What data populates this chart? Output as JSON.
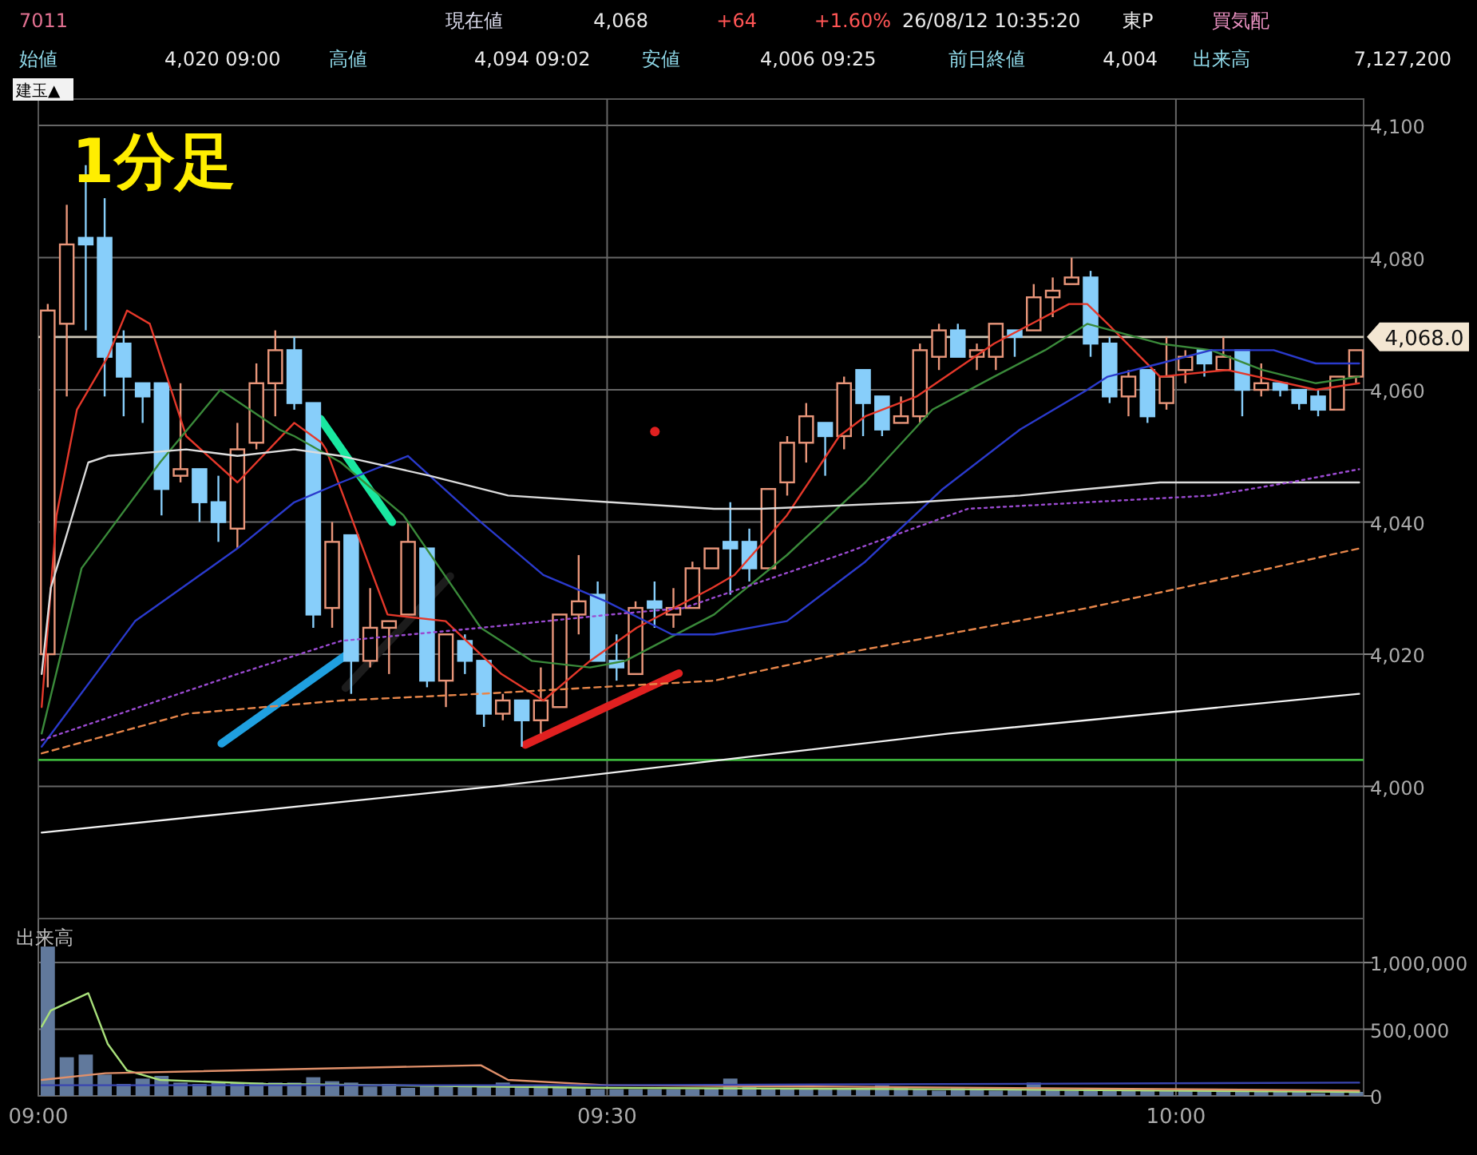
{
  "chart_data": [
    {
      "type": "candlestick",
      "title": "1分足",
      "tick_labels": "y",
      "grid": true,
      "annotations": [
        "7011",
        "現在値",
        "4,068",
        "+64",
        "+1.60%",
        "26/08/12 10:35:20",
        "東P",
        "買気配",
        "始値",
        "4,020 09:00",
        "高値",
        "4,094 09:02",
        "安値",
        "4,006 09:25",
        "前日終値",
        "4,004",
        "出来高",
        "7,127,200",
        "建玉▲"
      ],
      "x": [
        9.0083,
        9.025,
        9.0417,
        9.0583,
        9.075,
        9.0917,
        9.1083,
        9.125,
        9.1417,
        9.1583,
        9.175,
        9.1917,
        9.2083,
        9.225,
        9.2417,
        9.2583,
        9.275,
        9.2917,
        9.3083,
        9.325,
        9.3417,
        9.3583,
        9.375,
        9.3917,
        9.4083,
        9.425,
        9.4417,
        9.4583,
        9.475,
        9.4917,
        9.5083,
        9.525,
        9.5417,
        9.5583,
        9.575,
        9.5917,
        9.6083,
        9.625,
        9.6417,
        9.6583,
        9.675,
        9.6917,
        9.7083,
        9.725,
        9.7417,
        9.7583,
        9.775,
        9.7917,
        9.8083,
        9.825,
        9.8417,
        9.8583,
        9.875,
        9.8917,
        9.9083,
        9.925,
        9.9417,
        9.9583,
        9.975,
        9.9917,
        10.0083,
        10.025,
        10.0417,
        10.0583,
        10.075,
        10.0917,
        10.1083,
        10.125,
        10.1417,
        10.1583
      ],
      "ohlc": [
        [
          4020,
          4073,
          4015,
          4072
        ],
        [
          4070,
          4088,
          4059,
          4082
        ],
        [
          4083,
          4094,
          4069,
          4082
        ],
        [
          4083,
          4089,
          4059,
          4065
        ],
        [
          4067,
          4069,
          4056,
          4062
        ],
        [
          4061,
          4061,
          4055,
          4059
        ],
        [
          4061,
          4061,
          4041,
          4045
        ],
        [
          4047,
          4061,
          4046,
          4048
        ],
        [
          4048,
          4048,
          4040,
          4043
        ],
        [
          4043,
          4047,
          4037,
          4040
        ],
        [
          4039,
          4055,
          4036,
          4051
        ],
        [
          4052,
          4064,
          4051,
          4061
        ],
        [
          4061,
          4069,
          4056,
          4066
        ],
        [
          4066,
          4068,
          4057,
          4058
        ],
        [
          4058,
          4058,
          4024,
          4026
        ],
        [
          4027,
          4040,
          4024,
          4037
        ],
        [
          4038,
          4038,
          4014,
          4019
        ],
        [
          4019,
          4030,
          4018,
          4024
        ],
        [
          4024,
          4025,
          4017,
          4025
        ],
        [
          4026,
          4040,
          4026,
          4037
        ],
        [
          4036,
          4036,
          4015,
          4016
        ],
        [
          4016,
          4023,
          4012,
          4023
        ],
        [
          4022,
          4023,
          4017,
          4019
        ],
        [
          4019,
          4019,
          4009,
          4011
        ],
        [
          4011,
          4014,
          4010,
          4013
        ],
        [
          4013,
          4013,
          4006,
          4010
        ],
        [
          4010,
          4018,
          4008,
          4013
        ],
        [
          4012,
          4026,
          4012,
          4026
        ],
        [
          4026,
          4035,
          4023,
          4028
        ],
        [
          4029,
          4031,
          4019,
          4019
        ],
        [
          4019,
          4023,
          4016,
          4018
        ],
        [
          4017,
          4028,
          4017,
          4027
        ],
        [
          4028,
          4031,
          4024,
          4027
        ],
        [
          4026,
          4030,
          4024,
          4027
        ],
        [
          4027,
          4034,
          4027,
          4033
        ],
        [
          4033,
          4036,
          4033,
          4036
        ],
        [
          4037,
          4043,
          4029,
          4036
        ],
        [
          4037,
          4039,
          4031,
          4033
        ],
        [
          4033,
          4045,
          4033,
          4045
        ],
        [
          4046,
          4053,
          4044,
          4052
        ],
        [
          4052,
          4058,
          4049,
          4056
        ],
        [
          4055,
          4055,
          4047,
          4053
        ],
        [
          4053,
          4062,
          4051,
          4061
        ],
        [
          4063,
          4063,
          4053,
          4058
        ],
        [
          4059,
          4059,
          4053,
          4054
        ],
        [
          4055,
          4059,
          4055,
          4056
        ],
        [
          4056,
          4067,
          4055,
          4066
        ],
        [
          4065,
          4070,
          4063,
          4069
        ],
        [
          4069,
          4070,
          4065,
          4065
        ],
        [
          4065,
          4067,
          4063,
          4066
        ],
        [
          4065,
          4070,
          4063,
          4070
        ],
        [
          4069,
          4069,
          4065,
          4068
        ],
        [
          4069,
          4076,
          4069,
          4074
        ],
        [
          4074,
          4077,
          4071,
          4075
        ],
        [
          4076,
          4080,
          4076,
          4077
        ],
        [
          4077,
          4078,
          4065,
          4067
        ],
        [
          4067,
          4068,
          4058,
          4059
        ],
        [
          4059,
          4063,
          4056,
          4062
        ],
        [
          4063,
          4063,
          4055,
          4056
        ],
        [
          4058,
          4068,
          4057,
          4062
        ],
        [
          4063,
          4066,
          4061,
          4065
        ],
        [
          4066,
          4066,
          4062,
          4064
        ],
        [
          4063,
          4068,
          4063,
          4065
        ],
        [
          4066,
          4066,
          4056,
          4060
        ],
        [
          4060,
          4064,
          4059,
          4061
        ],
        [
          4061,
          4061,
          4059,
          4060
        ],
        [
          4060,
          4060,
          4057,
          4058
        ],
        [
          4059,
          4060,
          4056,
          4057
        ],
        [
          4057,
          4062,
          4057,
          4062
        ],
        [
          4062,
          4066,
          4061,
          4066
        ]
      ],
      "colors": [
        "#e9967a",
        "#e9967a",
        "#87cefa",
        "#87cefa",
        "#87cefa",
        "#87cefa",
        "#87cefa",
        "#e9967a",
        "#87cefa",
        "#87cefa",
        "#e9967a",
        "#e9967a",
        "#e9967a",
        "#87cefa",
        "#87cefa",
        "#e9967a",
        "#87cefa",
        "#e9967a",
        "#e9967a",
        "#e9967a",
        "#87cefa",
        "#e9967a",
        "#87cefa",
        "#87cefa",
        "#e9967a",
        "#87cefa",
        "#e9967a",
        "#e9967a",
        "#e9967a",
        "#87cefa",
        "#87cefa",
        "#e9967a",
        "#87cefa",
        "#e9967a",
        "#e9967a",
        "#e9967a",
        "#87cefa",
        "#87cefa",
        "#e9967a",
        "#e9967a",
        "#e9967a",
        "#87cefa",
        "#e9967a",
        "#87cefa",
        "#87cefa",
        "#e9967a",
        "#e9967a",
        "#e9967a",
        "#87cefa",
        "#e9967a",
        "#e9967a",
        "#87cefa",
        "#e9967a",
        "#e9967a",
        "#e9967a",
        "#87cefa",
        "#87cefa",
        "#e9967a",
        "#87cefa",
        "#e9967a",
        "#e9967a",
        "#87cefa",
        "#e9967a",
        "#87cefa",
        "#e9967a",
        "#87cefa",
        "#87cefa",
        "#87cefa",
        "#e9967a",
        "#e9967a"
      ],
      "series": [
        {
          "type": "line",
          "color": "#e5382a",
          "x": [
            9.003,
            9.016,
            9.034,
            9.061,
            9.078,
            9.098,
            9.13,
            9.175,
            9.225,
            9.249,
            9.253,
            9.307,
            9.358,
            9.407,
            9.444,
            9.485,
            9.526,
            9.592,
            9.612,
            9.658,
            9.704,
            9.727,
            9.772,
            9.84,
            9.906,
            9.922,
            9.94,
            9.986,
            10.045,
            10.123,
            10.161
          ],
          "values": [
            4012,
            4041,
            4057,
            4065,
            4072,
            4070,
            4053,
            4046,
            4055,
            4052,
            4051,
            4026,
            4025,
            4017,
            4013,
            4019,
            4024,
            4030,
            4032,
            4041,
            4053,
            4056,
            4059,
            4067,
            4073,
            4073,
            4070,
            4062,
            4063,
            4060,
            4061
          ]
        },
        {
          "type": "line",
          "color": "#3a8a3a",
          "x": [
            9.003,
            9.038,
            9.107,
            9.16,
            9.212,
            9.225,
            9.266,
            9.321,
            9.389,
            9.434,
            9.485,
            9.516,
            9.594,
            9.608,
            9.658,
            9.727,
            9.786,
            9.84,
            9.885,
            9.922,
            9.986,
            10.031,
            10.076,
            10.123,
            10.161
          ],
          "values": [
            4008,
            4033,
            4049,
            4060,
            4054,
            4053,
            4049,
            4041,
            4024,
            4019,
            4018,
            4019,
            4026,
            4028,
            4035,
            4046,
            4057,
            4062,
            4066,
            4070,
            4067,
            4066,
            4063,
            4061,
            4062
          ]
        },
        {
          "type": "line",
          "color": "#2a3acc",
          "x": [
            9.003,
            9.085,
            9.175,
            9.225,
            9.266,
            9.325,
            9.389,
            9.444,
            9.499,
            9.557,
            9.594,
            9.658,
            9.727,
            9.795,
            9.863,
            9.922,
            9.94,
            9.986,
            10.031,
            10.086,
            10.123,
            10.161
          ],
          "values": [
            4006,
            4025,
            4036,
            4043,
            4046,
            4050,
            4040,
            4032,
            4028,
            4023,
            4023,
            4025,
            4034,
            4045,
            4054,
            4060,
            4062,
            4064,
            4066,
            4066,
            4064,
            4064
          ]
        },
        {
          "type": "line",
          "color": "#dcdcdc",
          "x": [
            9.003,
            9.011,
            9.044,
            9.061,
            9.13,
            9.175,
            9.225,
            9.266,
            9.344,
            9.413,
            9.503,
            9.594,
            9.635,
            9.772,
            9.863,
            9.922,
            9.986,
            10.161
          ],
          "values": [
            4017,
            4030,
            4049,
            4050,
            4051,
            4050,
            4051,
            4050,
            4047,
            4044,
            4043,
            4042,
            4042,
            4043,
            4044,
            4045,
            4046,
            4046
          ]
        },
        {
          "type": "line",
          "color": "#9a4ad0",
          "line_style": "dotted",
          "x": [
            9.003,
            9.175,
            9.266,
            9.389,
            9.503,
            9.567,
            9.704,
            9.817,
            9.922,
            10.031,
            10.1,
            10.161
          ],
          "values": [
            4007,
            4017,
            4022,
            4024,
            4026,
            4027,
            4035,
            4042,
            4043,
            4044,
            4046,
            4048
          ]
        },
        {
          "type": "line",
          "color": "#e8864a",
          "line_style": "dashed",
          "x": [
            9.003,
            9.13,
            9.266,
            9.389,
            9.594,
            9.704,
            9.922,
            10.031,
            10.161
          ],
          "values": [
            4005,
            4011,
            4013,
            4014,
            4016,
            4020,
            4027,
            4031,
            4036
          ]
        },
        {
          "type": "line",
          "color": "#f0f0f0",
          "x": [
            9.003,
            9.4,
            9.8,
            10.161
          ],
          "values": [
            3993,
            4000,
            4008,
            4014
          ]
        },
        {
          "type": "line",
          "color": "#1fa0e0",
          "x": [
            9.161,
            9.27
          ],
          "values": [
            4006.5,
            4019.8
          ]
        },
        {
          "type": "line",
          "color": "#19e8a0",
          "x": [
            9.248,
            9.311
          ],
          "values": [
            4055.6,
            4040
          ]
        },
        {
          "type": "line",
          "color": "#1c1c1c",
          "x": [
            9.27,
            9.362
          ],
          "values": [
            4014.9,
            4031.8
          ]
        },
        {
          "type": "line",
          "color": "#e02020",
          "x": [
            9.428,
            9.563
          ],
          "values": [
            4006.3,
            4017.1
          ]
        },
        {
          "type": "scatter",
          "color": "#e02020",
          "marker": "circle",
          "x": [
            9.542
          ],
          "values": [
            4053.7
          ]
        }
      ],
      "ref_lines": [
        {
          "axis": "y",
          "value": 4068,
          "label": "4,068.0",
          "color": "#cfc8b8"
        },
        {
          "axis": "y",
          "value": 4004,
          "color": "#3cb43c"
        }
      ],
      "xlim": [
        9.0,
        10.165
      ],
      "ylim": [
        3980,
        4104
      ],
      "xticks": [
        {
          "value": 9.5,
          "label": null
        },
        {
          "value": 10.0,
          "label": null
        }
      ],
      "yticks": [
        {
          "value": 4000,
          "label": "4,000"
        },
        {
          "value": 4020,
          "label": "4,020"
        },
        {
          "value": 4040,
          "label": "4,040"
        },
        {
          "value": 4060,
          "label": "4,060"
        },
        {
          "value": 4080,
          "label": "4,080"
        },
        {
          "value": 4100,
          "label": "4,100"
        }
      ]
    },
    {
      "type": "bar",
      "title": "出来高",
      "grid": true,
      "x": [
        9.0083,
        9.025,
        9.0417,
        9.0583,
        9.075,
        9.0917,
        9.1083,
        9.125,
        9.1417,
        9.1583,
        9.175,
        9.1917,
        9.2083,
        9.225,
        9.2417,
        9.2583,
        9.275,
        9.2917,
        9.3083,
        9.325,
        9.3417,
        9.3583,
        9.375,
        9.3917,
        9.4083,
        9.425,
        9.4417,
        9.4583,
        9.475,
        9.4917,
        9.5083,
        9.525,
        9.5417,
        9.5583,
        9.575,
        9.5917,
        9.6083,
        9.625,
        9.6417,
        9.6583,
        9.675,
        9.6917,
        9.7083,
        9.725,
        9.7417,
        9.7583,
        9.775,
        9.7917,
        9.8083,
        9.825,
        9.8417,
        9.8583,
        9.875,
        9.8917,
        9.9083,
        9.925,
        9.9417,
        9.9583,
        9.975,
        9.9917,
        10.0083,
        10.025,
        10.0417,
        10.0583,
        10.075,
        10.0917,
        10.1083,
        10.125,
        10.1417,
        10.1583
      ],
      "series": [
        {
          "type": "bar",
          "color": "#61799c",
          "values": [
            1120000,
            290000,
            310000,
            160000,
            90000,
            130000,
            150000,
            100000,
            90000,
            100000,
            100000,
            100000,
            100000,
            100000,
            140000,
            110000,
            100000,
            70000,
            90000,
            60000,
            80000,
            70000,
            70000,
            80000,
            100000,
            70000,
            80000,
            60000,
            60000,
            50000,
            50000,
            50000,
            50000,
            50000,
            50000,
            60000,
            130000,
            70000,
            60000,
            60000,
            60000,
            50000,
            50000,
            60000,
            80000,
            60000,
            50000,
            40000,
            60000,
            60000,
            40000,
            50000,
            100000,
            50000,
            40000,
            60000,
            60000,
            50000,
            50000,
            40000,
            50000,
            40000,
            40000,
            30000,
            30000,
            30000,
            30000,
            20000,
            30000,
            30000
          ]
        },
        {
          "type": "line",
          "color": "#a8e07a",
          "x": [
            9.003,
            9.011,
            9.044,
            9.061,
            9.078,
            9.107,
            9.2,
            9.5,
            9.8,
            10.161
          ],
          "values": [
            520000,
            640000,
            770000,
            390000,
            190000,
            120000,
            90000,
            60000,
            50000,
            30000
          ]
        },
        {
          "type": "line",
          "color": "#e0906a",
          "x": [
            9.003,
            9.059,
            9.389,
            9.413,
            9.5,
            9.7,
            10.161
          ],
          "values": [
            120000,
            170000,
            230000,
            120000,
            80000,
            70000,
            40000
          ]
        },
        {
          "type": "line",
          "color": "#3a46b0",
          "x": [
            9.003,
            9.5,
            10.161
          ],
          "values": [
            80000,
            80000,
            100000
          ]
        }
      ],
      "xlim": [
        9.0,
        10.165
      ],
      "ylim": [
        0,
        1330000
      ],
      "xticks": [
        {
          "value": 9.0,
          "label": "09:00"
        },
        {
          "value": 9.5,
          "label": "09:30"
        },
        {
          "value": 10.0,
          "label": "10:00"
        }
      ],
      "yticks": [
        {
          "value": 0,
          "label": "0"
        },
        {
          "value": 500000,
          "label": "500,000"
        },
        {
          "value": 1000000,
          "label": "1,000,000"
        }
      ]
    }
  ]
}
